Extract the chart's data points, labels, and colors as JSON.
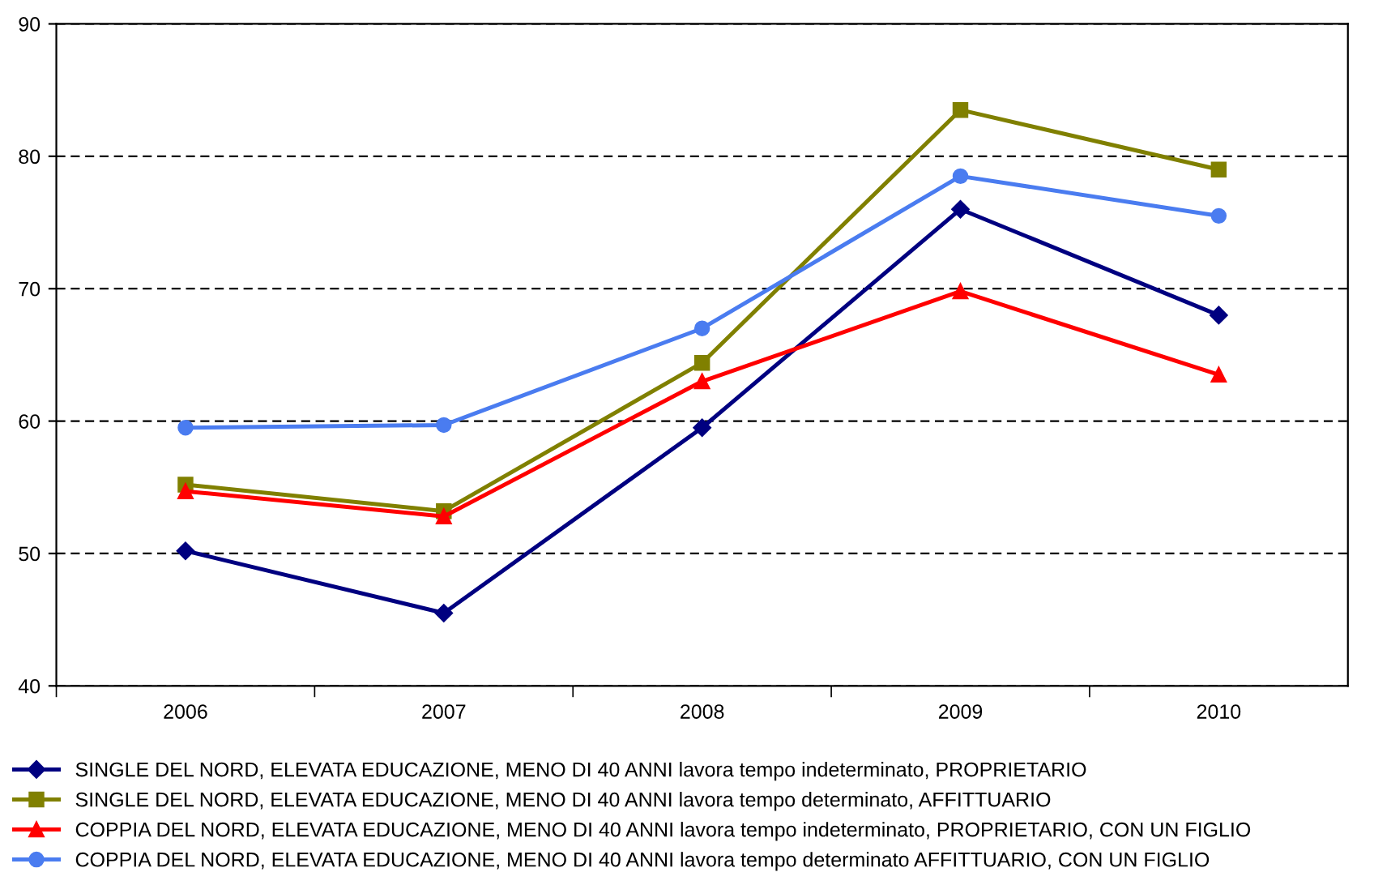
{
  "chart_data": {
    "type": "line",
    "categories": [
      "2006",
      "2007",
      "2008",
      "2009",
      "2010"
    ],
    "series": [
      {
        "name": "SINGLE DEL NORD, ELEVATA EDUCAZIONE, MENO DI 40 ANNI lavora tempo indeterminato, PROPRIETARIO",
        "color": "#000080",
        "marker": "diamond",
        "values": [
          50.2,
          45.5,
          59.5,
          76,
          68
        ]
      },
      {
        "name": "SINGLE DEL NORD, ELEVATA EDUCAZIONE, MENO DI 40 ANNI lavora tempo determinato, AFFITTUARIO",
        "color": "#808000",
        "marker": "square",
        "values": [
          55.2,
          53.2,
          64.4,
          83.5,
          79
        ]
      },
      {
        "name": "COPPIA DEL NORD, ELEVATA EDUCAZIONE, MENO DI 40 ANNI lavora tempo indeterminato, PROPRIETARIO, CON UN FIGLIO",
        "color": "#ff0000",
        "marker": "triangle",
        "values": [
          54.7,
          52.8,
          63,
          69.8,
          63.5
        ]
      },
      {
        "name": "COPPIA DEL NORD, ELEVATA EDUCAZIONE, MENO DI 40 ANNI lavora tempo determinato AFFITTUARIO, CON UN FIGLIO",
        "color": "#4a7cf0",
        "marker": "circle",
        "values": [
          59.5,
          59.7,
          67,
          78.5,
          75.5
        ]
      }
    ],
    "ylim": [
      40,
      90
    ],
    "yticks": [
      40,
      50,
      60,
      70,
      80,
      90
    ],
    "grid": "y",
    "line_style": "solid",
    "legend": "bottom"
  }
}
